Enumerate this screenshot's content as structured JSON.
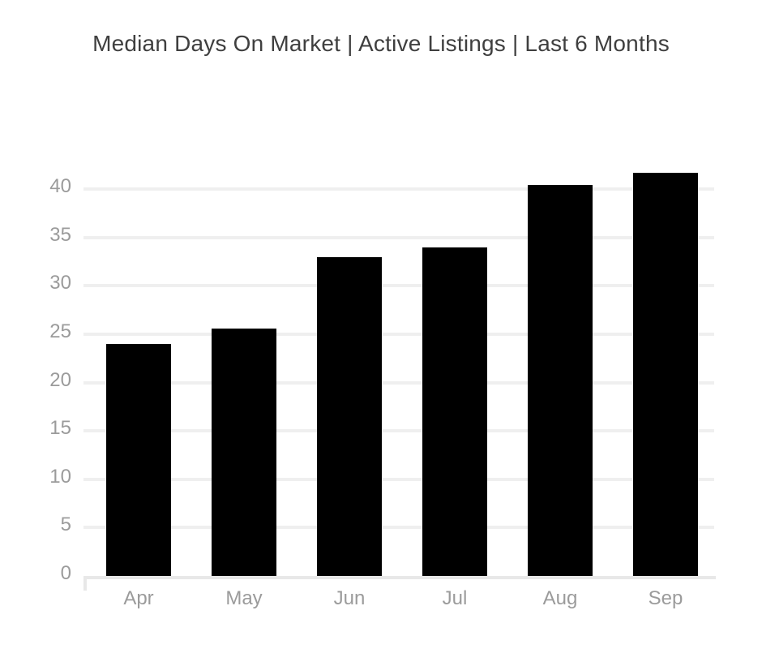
{
  "page": {
    "background": "#ffffff"
  },
  "chart_data": {
    "type": "bar",
    "title": "Median Days On Market | Active Listings | Last 6 Months",
    "categories": [
      "Apr",
      "May",
      "Jun",
      "Jul",
      "Aug",
      "Sep"
    ],
    "values": [
      24,
      25.6,
      33,
      34,
      40.4,
      41.7
    ],
    "series": [
      {
        "name": "Median Days On Market",
        "values": [
          24,
          25.6,
          33,
          34,
          40.4,
          41.7
        ]
      }
    ],
    "xlabel": "",
    "ylabel": "",
    "y_ticks": [
      0,
      5,
      10,
      15,
      20,
      25,
      30,
      35,
      40
    ],
    "ylim": [
      0,
      45
    ],
    "grid": true,
    "legend_position": "none",
    "colors": {
      "bar": "#000000",
      "title": "#3f3f3f",
      "axis_labels": "#9b9b9b",
      "gridline": "#efefef",
      "axis_line": "#e8e8e8"
    }
  }
}
